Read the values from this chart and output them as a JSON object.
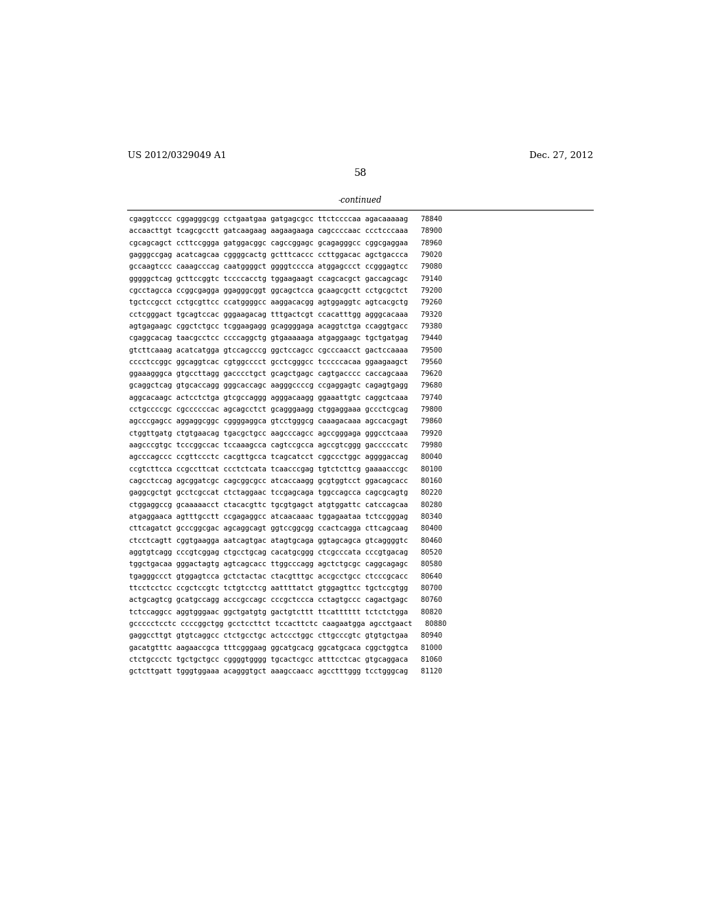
{
  "header_left": "US 2012/0329049 A1",
  "header_right": "Dec. 27, 2012",
  "page_number": "58",
  "continued_label": "-continued",
  "background_color": "#ffffff",
  "text_color": "#000000",
  "font_size": 7.5,
  "header_font_size": 9.5,
  "page_num_font_size": 10.5,
  "continued_font_size": 8.5,
  "lines": [
    "cgaggtcccc cggagggcgg cctgaatgaa gatgagcgcc ttctccccaa agacaaaaag   78840",
    "accaacttgt tcagcgcctt gatcaagaag aagaagaaga cagccccaac ccctcccaaa   78900",
    "cgcagcagct ccttccggga gatggacggc cagccggagc gcagagggcc cggcgaggaa   78960",
    "gagggccgag acatcagcaa cggggcactg gctttcaccc ccttggacac agctgaccca   79020",
    "gccaagtccc caaagcccag caatggggct ggggtcccca atggagccct ccgggagtcc   79080",
    "gggggctcag gcttccggtc tccccacctg tggaagaagt ccagcacgct gaccagcagc   79140",
    "cgcctagcca ccggcgagga ggagggcggt ggcagctcca gcaagcgctt cctgcgctct   79200",
    "tgctccgcct cctgcgttcc ccatggggcc aaggacacgg agtggaggtc agtcacgctg   79260",
    "cctcgggact tgcagtccac gggaagacag tttgactcgt ccacatttgg agggcacaaa   79320",
    "agtgagaagc cggctctgcc tcggaagagg gcaggggaga acaggtctga ccaggtgacc   79380",
    "cgaggcacag taacgcctcc ccccaggctg gtgaaaaaga atgaggaagc tgctgatgag   79440",
    "gtcttcaaag acatcatgga gtccagcccg ggctccagcc cgcccaacct gactccaaaa   79500",
    "cccctccggc ggcaggtcac cgtggcccct gcctcgggcc tcccccacaa ggaagaagct   79560",
    "ggaaagggca gtgccttagg gacccctgct gcagctgagc cagtgacccc caccagcaaa   79620",
    "gcaggctcag gtgcaccagg gggcaccagc aagggccccg ccgaggagtc cagagtgagg   79680",
    "aggcacaagc actcctctga gtcgccaggg agggacaagg ggaaattgtc caggctcaaa   79740",
    "cctgccccgc cgccccccac agcagcctct gcagggaagg ctggaggaaa gccctcgcag   79800",
    "agcccgagcc aggaggcggc cggggaggca gtcctgggcg caaagacaaa agccacgagt   79860",
    "ctggttgatg ctgtgaacag tgacgctgcc aagcccagcc agccgggaga gggcctcaaa   79920",
    "aagcccgtgc tcccggccac tccaaagcca cagtccgcca agccgtcggg gacccccatc   79980",
    "agcccagccc ccgttccctc cacgttgcca tcagcatcct cggccctggc aggggaccag   80040",
    "ccgtcttcca ccgccttcat ccctctcata tcaacccgag tgtctcttcg gaaaacccgc   80100",
    "cagcctccag agcggatcgc cagcggcgcc atcaccaagg gcgtggtcct ggacagcacc   80160",
    "gaggcgctgt gcctcgccat ctctaggaac tccgagcaga tggccagcca cagcgcagtg   80220",
    "ctggaggccg gcaaaaacct ctacacgttc tgcgtgagct atgtggattc catccagcaa   80280",
    "atgaggaaca agtttgcctt ccgagaggcc atcaacaaac tggagaataa tctccgggag   80340",
    "cttcagatct gcccggcgac agcaggcagt ggtccggcgg ccactcagga cttcagcaag   80400",
    "ctcctcagtt cggtgaagga aatcagtgac atagtgcaga ggtagcagca gtcaggggtc   80460",
    "aggtgtcagg cccgtcggag ctgcctgcag cacatgcggg ctcgcccata cccgtgacag   80520",
    "tggctgacaa gggactagtg agtcagcacc ttggcccagg agctctgcgc caggcagagc   80580",
    "tgagggccct gtggagtcca gctctactac ctacgtttgc accgcctgcc ctcccgcacc   80640",
    "ttcctcctcc ccgctccgtc tctgtcctcg aattttatct gtggagttcc tgctccgtgg   80700",
    "actgcagtcg gcatgccagg acccgccagc cccgctccca cctagtgccc cagactgagc   80760",
    "tctccaggcc aggtgggaac ggctgatgtg gactgtcttt ttcatttttt tctctctgga   80820",
    "gccccctcctc ccccggctgg gcctccttct tccacttctc caagaatgga agcctgaact   80880",
    "gaggccttgt gtgtcaggcc ctctgcctgc actccctggc cttgcccgtc gtgtgctgaa   80940",
    "gacatgtttc aagaaccgca tttcgggaag ggcatgcacg ggcatgcaca cggctggtca   81000",
    "ctctgccctc tgctgctgcc cggggtgggg tgcactcgcc atttcctcac gtgcaggaca   81060",
    "gctcttgatt tgggtggaaa acagggtgct aaagccaacc agcctttggg tcctgggcag   81120"
  ]
}
